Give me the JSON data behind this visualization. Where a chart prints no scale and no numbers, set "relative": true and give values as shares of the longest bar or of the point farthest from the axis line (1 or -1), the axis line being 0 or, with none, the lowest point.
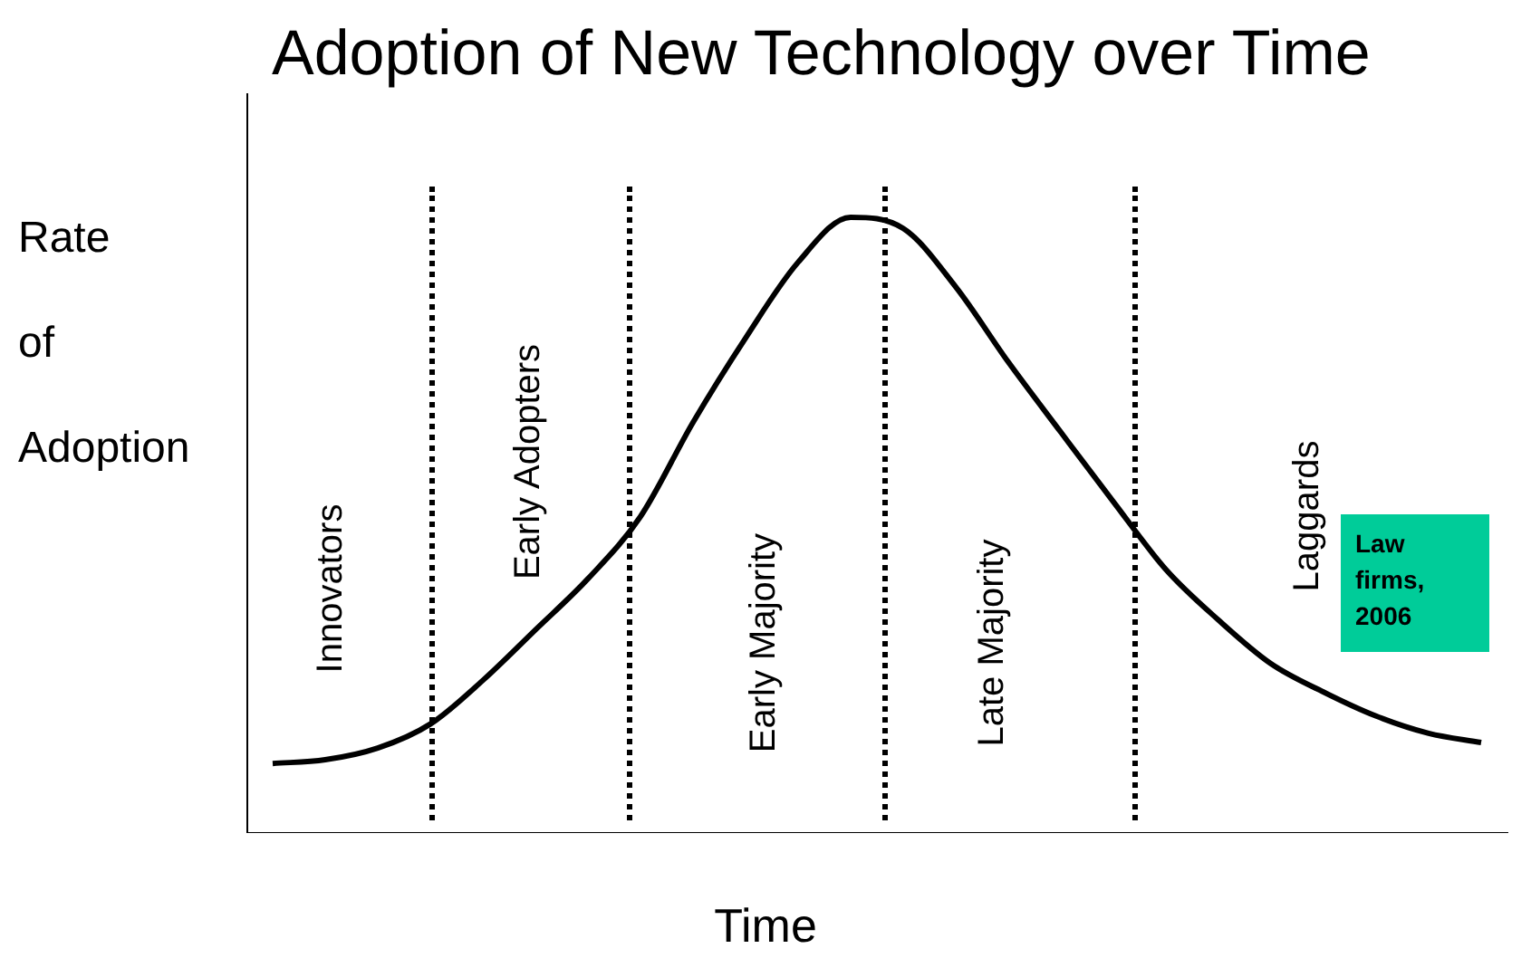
{
  "chart_data": {
    "type": "line",
    "title": "Adoption of New Technology over Time",
    "xlabel": "Time",
    "ylabel": "Rate of Adoption",
    "relative": true,
    "marker": "none",
    "line_style": "solid",
    "categories": [
      null,
      null,
      null,
      null,
      null,
      null,
      null,
      null,
      null,
      null,
      null,
      null,
      null,
      null,
      null,
      null,
      null,
      null,
      null,
      null,
      null,
      null,
      null,
      null
    ],
    "series": [
      {
        "color": "#000000",
        "values": [
          0.113,
          0.119,
          0.138,
          0.177,
          0.248,
          0.33,
          0.413,
          0.514,
          0.667,
          0.804,
          0.927,
          1,
          0.982,
          0.887,
          0.765,
          0.651,
          0.538,
          0.428,
          0.346,
          0.275,
          0.229,
          0.19,
          0.162,
          0.147
        ]
      }
    ],
    "annotations": [
      "Innovators",
      "Early Adopters",
      "Early Majority",
      "Late Majority",
      "Laggards",
      "Law firms, 2006"
    ]
  }
}
